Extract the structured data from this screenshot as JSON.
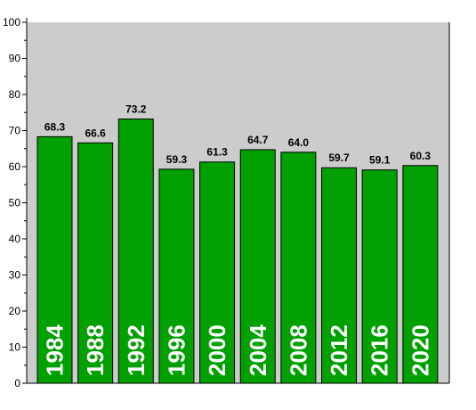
{
  "colors": {
    "plot_background": "#cccccc",
    "bar_fill": "#00a000",
    "bar_stroke": "#000000",
    "axis": "#000000",
    "category_text": "#ffffff"
  },
  "chart_data": {
    "type": "bar",
    "title": "",
    "xlabel": "",
    "ylabel": "",
    "categories": [
      "1984",
      "1988",
      "1992",
      "1996",
      "2000",
      "2004",
      "2008",
      "2012",
      "2016",
      "2020"
    ],
    "values": [
      68.3,
      66.6,
      73.2,
      59.3,
      61.3,
      64.7,
      64.0,
      59.7,
      59.1,
      60.3
    ],
    "value_labels": [
      "68.3",
      "66.6",
      "73.2",
      "59.3",
      "61.3",
      "64.7",
      "64.0",
      "59.7",
      "59.1",
      "60.3"
    ],
    "ylim": [
      0,
      100
    ],
    "yticks": [
      0,
      10,
      20,
      30,
      40,
      50,
      60,
      70,
      80,
      90,
      100
    ],
    "ytick_labels": [
      "0",
      "10",
      "20",
      "30",
      "40",
      "50",
      "60",
      "70",
      "80",
      "90",
      "100"
    ],
    "grid": false,
    "legend": "none",
    "category_label_placement": "inside bar, rotated vertical"
  }
}
